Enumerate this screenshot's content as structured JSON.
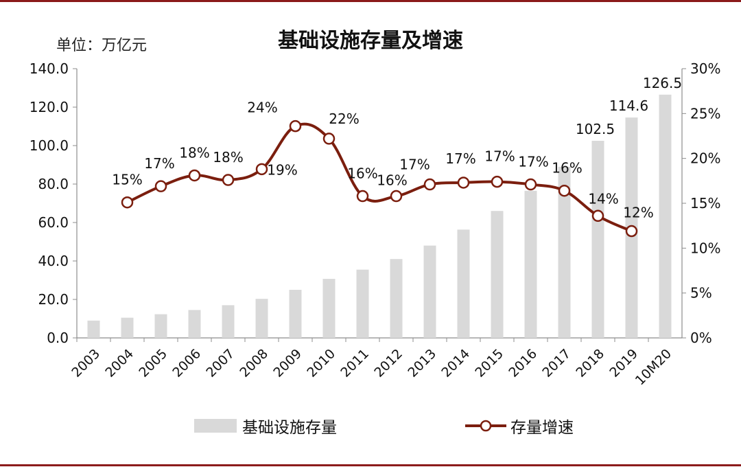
{
  "title": "基础设施存量及增速",
  "unit_label": "单位：万亿元",
  "legend": {
    "bar_label": "基础设施存量",
    "line_label": "存量增速"
  },
  "colors": {
    "bar": "#d9d9d9",
    "line": "#7b1e0e",
    "marker_fill": "#ffffff",
    "border": "#8b1a1a",
    "axis": "#8c8c8c"
  },
  "chart_data": {
    "type": "bar+line",
    "categories": [
      "2003",
      "2004",
      "2005",
      "2006",
      "2007",
      "2008",
      "2009",
      "2010",
      "2011",
      "2012",
      "2013",
      "2014",
      "2015",
      "2016",
      "2017",
      "2018",
      "2019",
      "10M20"
    ],
    "series": [
      {
        "name": "基础设施存量",
        "type": "bar",
        "axis": "left",
        "values": [
          9.0,
          10.5,
          12.3,
          14.5,
          17.0,
          20.3,
          25.0,
          30.7,
          35.5,
          41.0,
          48.0,
          56.3,
          66.0,
          76.5,
          89.0,
          102.5,
          114.6,
          126.5
        ],
        "data_labels": [
          "",
          "",
          "",
          "",
          "",
          "",
          "",
          "",
          "",
          "",
          "",
          "",
          "",
          "",
          "",
          "102.5",
          "114.6",
          "126.5"
        ]
      },
      {
        "name": "存量增速",
        "type": "line",
        "axis": "right",
        "values": [
          null,
          15.1,
          16.9,
          18.1,
          17.6,
          18.8,
          23.6,
          22.2,
          15.8,
          15.8,
          17.1,
          17.3,
          17.4,
          17.1,
          16.4,
          13.6,
          11.9,
          null
        ],
        "data_labels": [
          "",
          "15%",
          "17%",
          "18%",
          "18%",
          "19%",
          "24%",
          "22%",
          "16%",
          "16%",
          "17%",
          "17%",
          "17%",
          "17%",
          "16%",
          "14%",
          "12%",
          ""
        ]
      }
    ],
    "y_left": {
      "min": 0,
      "max": 140,
      "ticks": [
        "0.0",
        "20.0",
        "40.0",
        "60.0",
        "80.0",
        "100.0",
        "120.0",
        "140.0"
      ]
    },
    "y_right": {
      "min": 0,
      "max": 30,
      "ticks": [
        "0%",
        "5%",
        "10%",
        "15%",
        "20%",
        "25%",
        "30%"
      ]
    },
    "grid": false,
    "legend_position": "bottom"
  }
}
